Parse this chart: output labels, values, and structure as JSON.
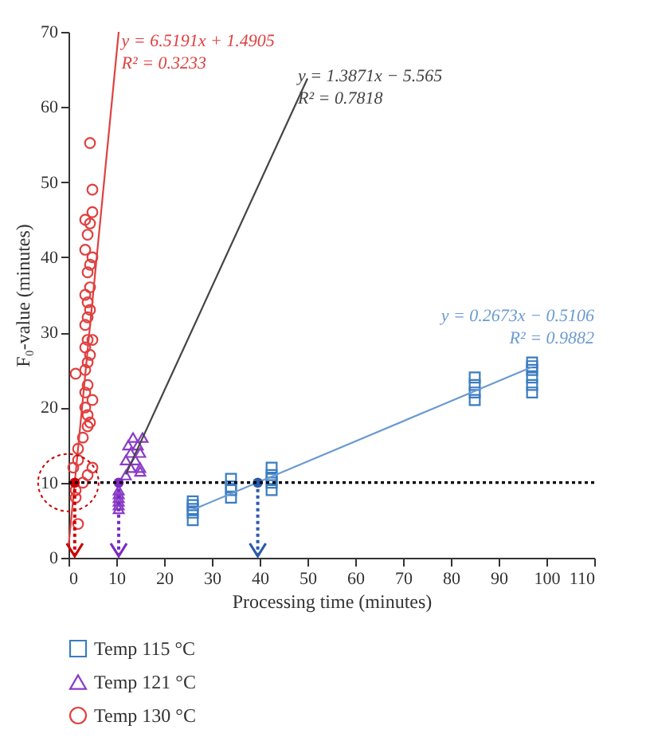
{
  "chart_data": {
    "type": "scatter",
    "xlabel": "Processing time (minutes)",
    "ylabel": "F₀-value (minutes)",
    "xlim": [
      0,
      110
    ],
    "ylim": [
      0,
      70
    ],
    "xticks": [
      0,
      10,
      20,
      30,
      40,
      50,
      60,
      70,
      80,
      90,
      100,
      110
    ],
    "yticks": [
      0,
      10,
      20,
      30,
      40,
      50,
      60,
      70
    ],
    "legend": "bottom left",
    "series": [
      {
        "name": "Temp 115 °C",
        "color": "#3a7cc0",
        "marker": "square",
        "x": [
          26,
          26,
          26,
          26,
          26,
          34,
          34,
          34,
          34,
          42.5,
          42.5,
          42.5,
          42.5,
          42.5,
          85,
          85,
          85,
          85,
          97,
          97,
          97,
          97,
          97,
          97
        ],
        "values": [
          5,
          6,
          6.5,
          7,
          7.5,
          8,
          9,
          9.5,
          10.5,
          9,
          10,
          10.5,
          11,
          12,
          21,
          22,
          23,
          24,
          22,
          23,
          24,
          25,
          25.5,
          26
        ]
      },
      {
        "name": "Temp 121 °C",
        "color": "#8a3cc8",
        "marker": "triangle",
        "x": [
          10.5,
          10.5,
          10.5,
          10.5,
          10.5,
          10.5,
          12,
          12,
          12.5,
          13,
          13,
          13.5,
          14,
          14.5,
          15,
          15,
          15.5,
          15
        ],
        "values": [
          6.5,
          7,
          7.5,
          8,
          8.5,
          9,
          11,
          13,
          15,
          12,
          14,
          16,
          13,
          15,
          12,
          14,
          16,
          11.5
        ]
      },
      {
        "name": "Temp 130 °C",
        "color": "#e04040",
        "marker": "circle",
        "x": [
          1.5,
          1.5,
          2,
          1,
          2,
          2,
          3,
          1.5,
          3.5,
          4,
          4.5,
          3.5,
          4,
          3.5,
          4,
          4.5,
          3.5,
          4,
          5,
          3.5,
          4,
          4.5,
          4,
          3.5,
          4.5,
          4,
          4.5,
          5,
          3.5,
          4,
          4.5,
          3.5,
          5,
          5,
          4.5,
          4,
          5,
          3,
          4,
          5
        ],
        "values": [
          8,
          9,
          4.5,
          12,
          13,
          14.5,
          16,
          24.5,
          20,
          17.5,
          18,
          22,
          23,
          25,
          26,
          27,
          28,
          29,
          29,
          31,
          32,
          33,
          34,
          35,
          36,
          38,
          39,
          40,
          41,
          43,
          44.5,
          45,
          46,
          49,
          55.2,
          19,
          21,
          10,
          11,
          12
        ]
      },
      {
        "type": "line",
        "color": "#e04040",
        "x": [
          0,
          10.5
        ],
        "values": [
          1.5,
          70
        ]
      },
      {
        "type": "line",
        "color": "#444444",
        "x": [
          12,
          50
        ],
        "values": [
          11.1,
          63.8
        ]
      },
      {
        "type": "line",
        "color": "#6b9bd1",
        "x": [
          26,
          97
        ],
        "values": [
          6.4,
          25.4
        ]
      },
      {
        "colors": [
          "#cc0000",
          "#7a2cc0",
          "#2c5aa8"
        ],
        "marker": "circle",
        "x": [
          1.3,
          10.5,
          39.6
        ],
        "values": [
          10,
          10,
          10
        ]
      }
    ],
    "ref_lines": [
      {
        "axis": "y",
        "value": 10,
        "color": "#000000",
        "line_style": "dotted"
      }
    ],
    "annotations": [
      "y = 6.5191x + 1.4905\nR² = 0.3233",
      "y = 1.3871x − 5.565\nR² = 0.7818",
      "y = 0.2673x − 0.5106\nR² = 0.9882"
    ]
  }
}
